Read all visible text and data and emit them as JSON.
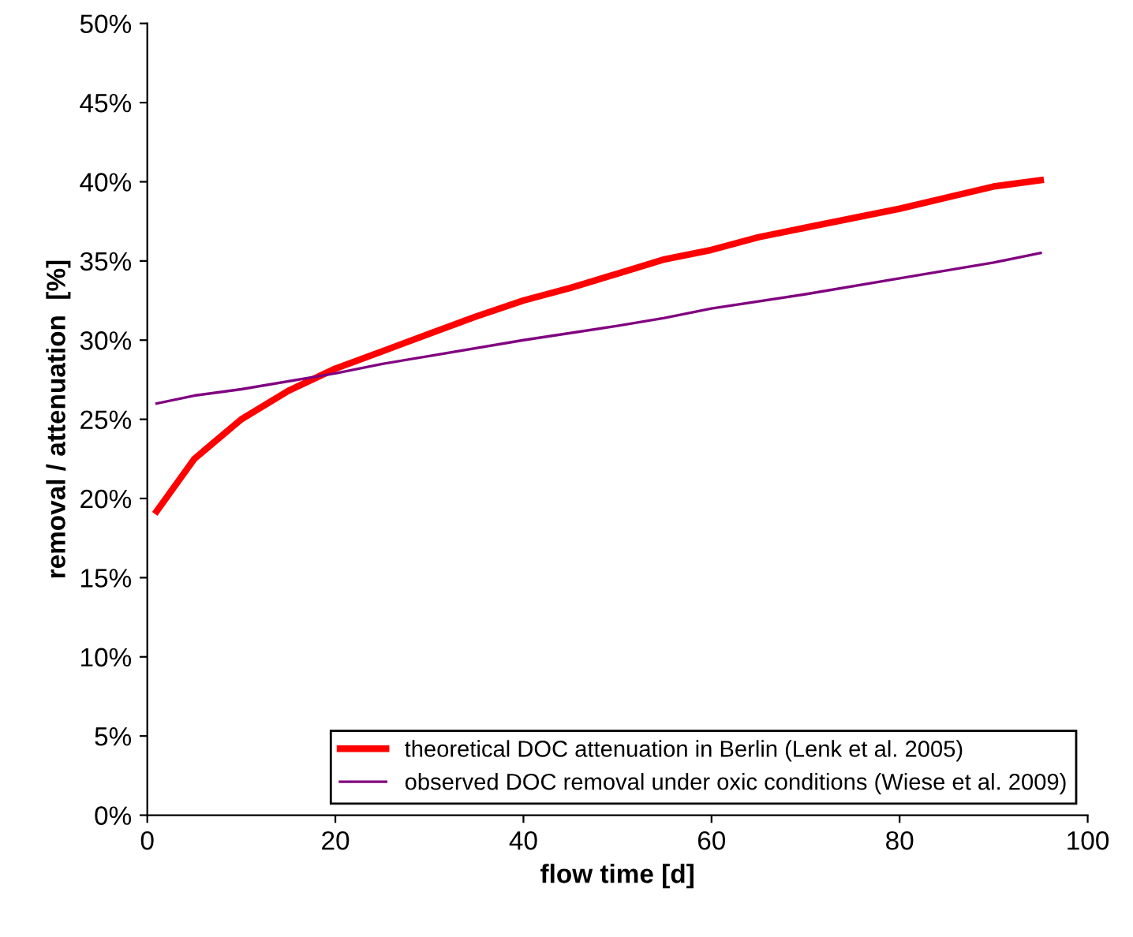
{
  "chart_data": {
    "type": "line",
    "xlabel": "flow time [d]",
    "ylabel": "removal / attenuation  [%]",
    "xlim": [
      0,
      100
    ],
    "xticks": [
      0,
      20,
      40,
      60,
      80,
      100
    ],
    "ylim": [
      0,
      50
    ],
    "yticks": [
      {
        "value": 0,
        "label": "0%"
      },
      {
        "value": 5,
        "label": "5%"
      },
      {
        "value": 10,
        "label": "10%"
      },
      {
        "value": 15,
        "label": "15%"
      },
      {
        "value": 20,
        "label": "20%"
      },
      {
        "value": 25,
        "label": "25%"
      },
      {
        "value": 30,
        "label": "30%"
      },
      {
        "value": 35,
        "label": "35%"
      },
      {
        "value": 40,
        "label": "40%"
      },
      {
        "value": 45,
        "label": "45%"
      },
      {
        "value": 50,
        "label": "50%"
      }
    ],
    "grid": false,
    "legend": "bottom right",
    "marker": "none",
    "line_style": "solid",
    "series": [
      {
        "name": "theoretical DOC attenuation in Berlin (Lenk et al. 2005)",
        "color": "#ff0000",
        "x": [
          1,
          5,
          10,
          15,
          20,
          25,
          30,
          35,
          40,
          45,
          50,
          55,
          60,
          65,
          70,
          75,
          80,
          85,
          90,
          95
        ],
        "values": [
          19.2,
          22.5,
          25.0,
          26.8,
          28.2,
          29.3,
          30.4,
          31.5,
          32.5,
          33.3,
          34.2,
          35.1,
          35.7,
          36.5,
          37.1,
          37.7,
          38.3,
          39.0,
          39.7,
          40.1
        ]
      },
      {
        "name": "observed DOC removal under oxic conditions (Wiese et al. 2009)",
        "color": "#800080",
        "x": [
          1,
          5,
          10,
          20,
          25,
          30,
          40,
          50,
          55,
          60,
          70,
          80,
          90,
          95
        ],
        "values": [
          26.0,
          26.5,
          26.9,
          27.9,
          28.5,
          29.0,
          30.0,
          30.9,
          31.4,
          32.0,
          32.9,
          33.9,
          34.9,
          35.5
        ]
      }
    ]
  }
}
